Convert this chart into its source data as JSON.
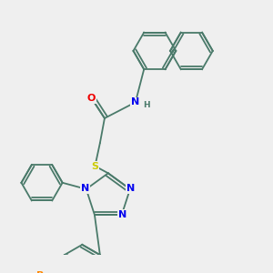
{
  "background_color": "#efefef",
  "bond_color": "#4a7a6a",
  "atom_colors": {
    "N": "#0000ee",
    "O": "#ee0000",
    "S": "#cccc00",
    "Br": "#ff8800",
    "H": "#4a7a6a",
    "C": "#4a7a6a"
  },
  "figsize": [
    3.0,
    3.0
  ],
  "dpi": 100
}
